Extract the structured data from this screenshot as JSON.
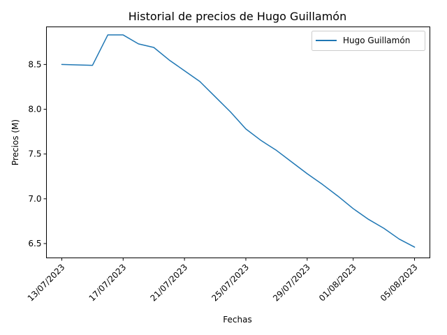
{
  "chart_data": {
    "type": "line",
    "title": "Historial de precios de Hugo Guillamón",
    "xlabel": "Fechas",
    "ylabel": "Precios (M)",
    "x_tick_labels": [
      "13/07/2023",
      "17/07/2023",
      "21/07/2023",
      "25/07/2023",
      "29/07/2023",
      "01/08/2023",
      "05/08/2023"
    ],
    "y_tick_labels": [
      "6.5",
      "7.0",
      "7.5",
      "8.0",
      "8.5"
    ],
    "ylim": [
      6.34,
      8.92
    ],
    "grid": false,
    "legend_position": "top-right",
    "series": [
      {
        "name": "Hugo Guillamón",
        "color": "#1f77b4",
        "x": [
          "2023-07-13",
          "2023-07-15",
          "2023-07-16",
          "2023-07-17",
          "2023-07-18",
          "2023-07-19",
          "2023-07-20",
          "2023-07-21",
          "2023-07-22",
          "2023-07-23",
          "2023-07-24",
          "2023-07-25",
          "2023-07-26",
          "2023-07-27",
          "2023-07-28",
          "2023-07-29",
          "2023-07-30",
          "2023-07-31",
          "2023-08-01",
          "2023-08-02",
          "2023-08-03",
          "2023-08-04",
          "2023-08-05"
        ],
        "values": [
          8.5,
          8.49,
          8.83,
          8.83,
          8.73,
          8.69,
          8.55,
          8.43,
          8.31,
          8.14,
          7.97,
          7.78,
          7.65,
          7.54,
          7.41,
          7.28,
          7.16,
          7.03,
          6.89,
          6.77,
          6.67,
          6.55,
          6.46
        ]
      }
    ]
  }
}
